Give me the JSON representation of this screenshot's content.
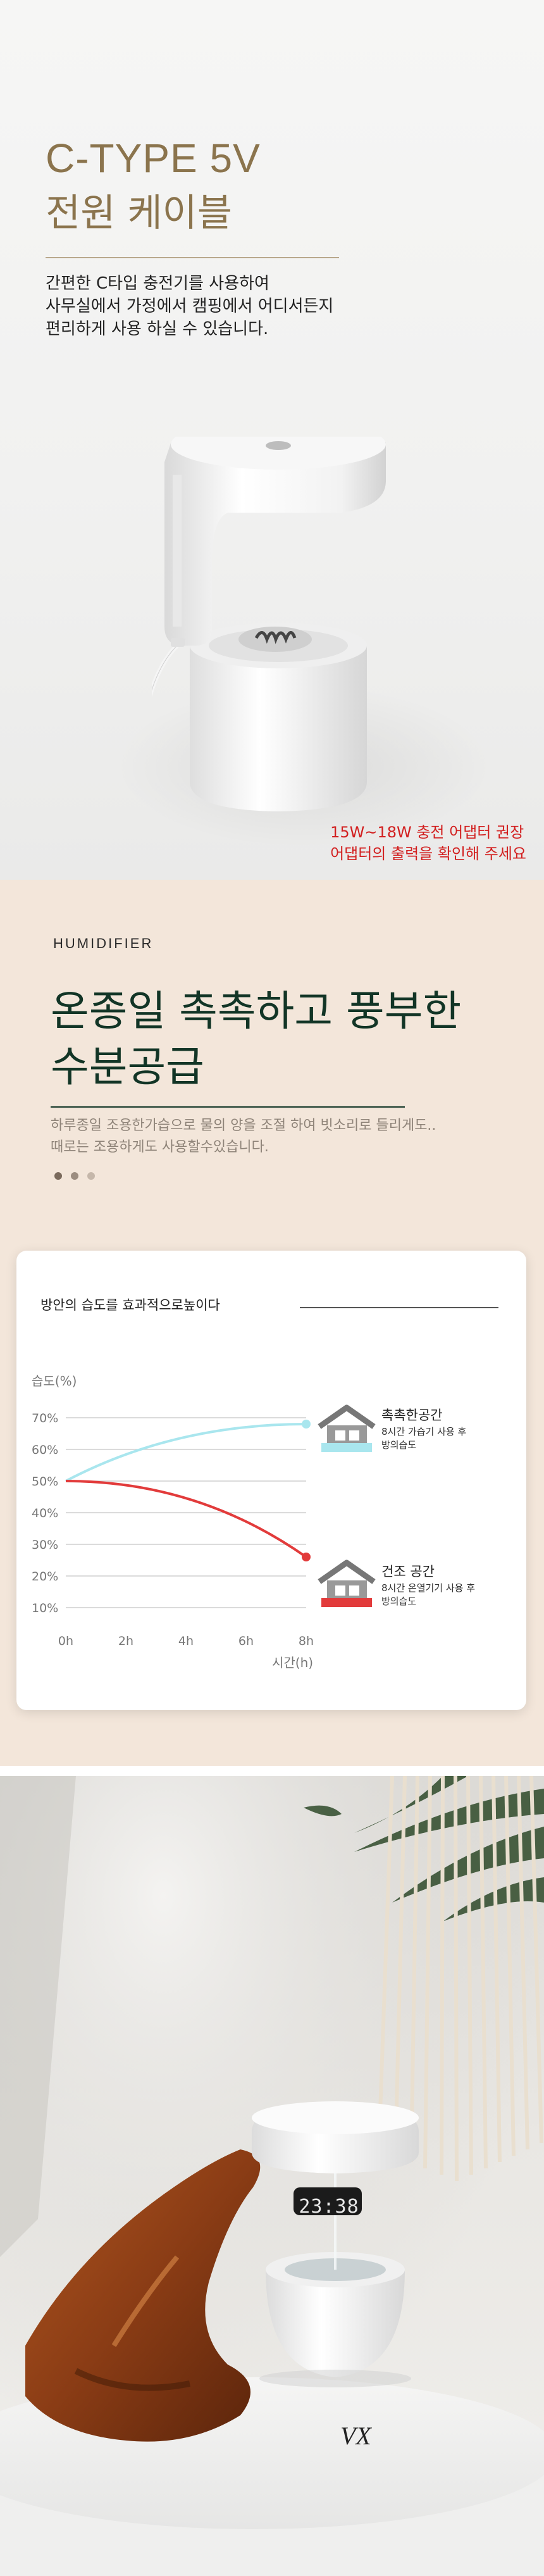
{
  "ctype_section": {
    "title_line1": "C-TYPE 5V",
    "title_line2": "전원 케이블",
    "description": [
      "간편한 C타입 충전기를 사용하여",
      "사무실에서 가정에서 캠핑에서 어디서든지",
      "편리하게 사용 하실 수 있습니다."
    ],
    "notice": [
      "15W~18W 충전 어댑터 권장",
      "어댑터의 출력을 확인해 주세요"
    ],
    "notice_color": "#d21f1f",
    "title_color": "#8b744d"
  },
  "humidifier_section": {
    "eyebrow": "HUMIDIFIER",
    "title_line1": "온종일 촉촉하고 풍부한",
    "title_line2": "수분공급",
    "description": [
      "하루종일 조용한가습으로 물의 양을 조절 하여 빗소리로 들리게도..",
      "때로는 조용하게도 사용할수있습니다."
    ],
    "background_color": "#f3e6da",
    "title_color": "#123526"
  },
  "chart_card": {
    "title": "방안의 습도를 효과적으로높이다",
    "legend": [
      {
        "label": "촉촉한공간",
        "sub_line1": "8시간 가습기 사용 후",
        "sub_line2": "방의습도",
        "icon": "house-icon-blue"
      },
      {
        "label": "건조 공간",
        "sub_line1": "8시간 온열기기 사용 후",
        "sub_line2": "방의습도",
        "icon": "house-icon-red"
      }
    ]
  },
  "chart_data": {
    "type": "line",
    "ylabel": "습도(%)",
    "xlabel": "시간(h)",
    "x": [
      "0h",
      "2h",
      "4h",
      "6h",
      "8h"
    ],
    "y_ticks": [
      "70%",
      "60%",
      "50%",
      "40%",
      "30%",
      "20%",
      "10%"
    ],
    "ylim": [
      10,
      70
    ],
    "grid": true,
    "series": [
      {
        "name": "촉촉한공간",
        "color": "#a9e6ee",
        "x": [
          0,
          8
        ],
        "values": [
          50,
          68
        ],
        "shape": "concave-rising"
      },
      {
        "name": "건조 공간",
        "color": "#e23b3b",
        "x": [
          0,
          8
        ],
        "values": [
          50,
          26
        ],
        "shape": "accelerating-falling"
      }
    ]
  },
  "photo_section": {
    "clock_display": "23:38",
    "brand_mark": "VX"
  }
}
